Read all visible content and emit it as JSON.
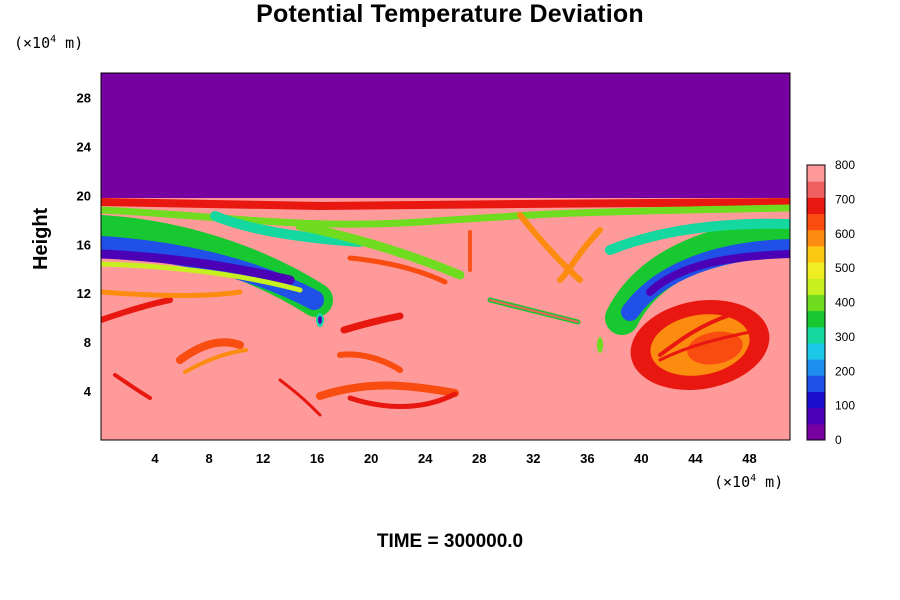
{
  "chart_data": {
    "type": "heatmap",
    "title": "Potential Temperature Deviation",
    "ylabel": "Height",
    "x_unit_prefix": "(×10",
    "x_unit_exp": "4",
    "x_unit_suffix": " m)",
    "y_unit_prefix": "(×10",
    "y_unit_exp": "4",
    "y_unit_suffix": " m)",
    "x_ticks": [
      4,
      8,
      12,
      16,
      20,
      24,
      28,
      32,
      36,
      40,
      44,
      48
    ],
    "y_ticks": [
      4,
      8,
      12,
      16,
      20,
      24,
      28
    ],
    "xlim": [
      0,
      51
    ],
    "ylim": [
      0,
      30
    ],
    "colorbar": {
      "ticks": [
        0,
        100,
        200,
        300,
        400,
        500,
        600,
        700,
        800
      ],
      "range": [
        0,
        800
      ],
      "colors": [
        "#7700a0",
        "#4b00b5",
        "#1d10cc",
        "#2050e8",
        "#1e8ef0",
        "#1cc8e8",
        "#14d8a0",
        "#18c830",
        "#70dc20",
        "#c8f020",
        "#eeee22",
        "#fcc814",
        "#fc8c10",
        "#f84c10",
        "#e81810",
        "#f06060",
        "#ff9a9a"
      ]
    },
    "annotation": "TIME = 300000.0"
  }
}
